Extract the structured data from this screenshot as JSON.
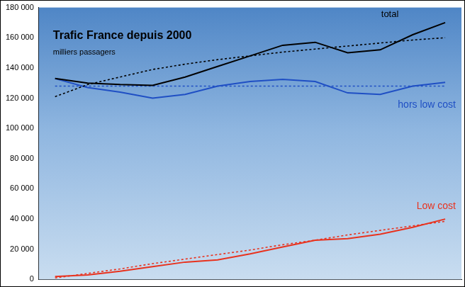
{
  "chart_data": {
    "type": "line",
    "title": "Trafic France depuis 2000",
    "subtitle": "milliers passagers",
    "categories": [
      null,
      null,
      null,
      null,
      null,
      null,
      null,
      null,
      null,
      null,
      null,
      null,
      null
    ],
    "series": [
      {
        "name": "total",
        "color": "#000000",
        "line_style": "solid",
        "values": [
          133000,
          130000,
          129000,
          128500,
          134000,
          141000,
          148000,
          155000,
          157000,
          150000,
          152000,
          162000,
          170000
        ]
      },
      {
        "color": "#000000",
        "line_style": "dotted",
        "values": [
          121000,
          129000,
          134000,
          139000,
          142500,
          145500,
          148000,
          150500,
          152500,
          154500,
          156500,
          158500,
          160000
        ]
      },
      {
        "name": "hors low cost",
        "color": "#1f4fc4",
        "line_style": "solid",
        "values": [
          133000,
          127000,
          124000,
          120000,
          122500,
          128000,
          131000,
          132500,
          131000,
          123500,
          122500,
          128000,
          130500
        ]
      },
      {
        "color": "#1f4fc4",
        "line_style": "dotted",
        "values": [
          128000,
          128000,
          128000,
          128000,
          128000,
          128000,
          128000,
          128000,
          128000,
          128000,
          128000,
          128000,
          128000
        ]
      },
      {
        "name": "Low cost",
        "color": "#e8321e",
        "line_style": "solid",
        "values": [
          2000,
          3000,
          5500,
          8500,
          11500,
          13000,
          17000,
          21500,
          26000,
          27000,
          30000,
          34500,
          40000
        ]
      },
      {
        "color": "#e8321e",
        "line_style": "dotted",
        "values": [
          1000,
          4000,
          7000,
          10500,
          13500,
          16500,
          19500,
          23000,
          26000,
          29500,
          32500,
          35500,
          38500
        ]
      }
    ],
    "ylim": [
      0,
      180000
    ],
    "yticks": [
      0,
      {
        "value": 20000,
        "label": "20 000"
      },
      {
        "value": 40000,
        "label": "40 000"
      },
      {
        "value": 60000,
        "label": "60 000"
      },
      {
        "value": 80000,
        "label": "80 000"
      },
      {
        "value": 100000,
        "label": "100 000"
      },
      {
        "value": 120000,
        "label": "120 000"
      },
      {
        "value": 140000,
        "label": "140 000"
      },
      {
        "value": 160000,
        "label": "160 000"
      },
      {
        "value": 180000,
        "label": "180 000"
      }
    ],
    "grid": false,
    "tick_labels": "y"
  }
}
